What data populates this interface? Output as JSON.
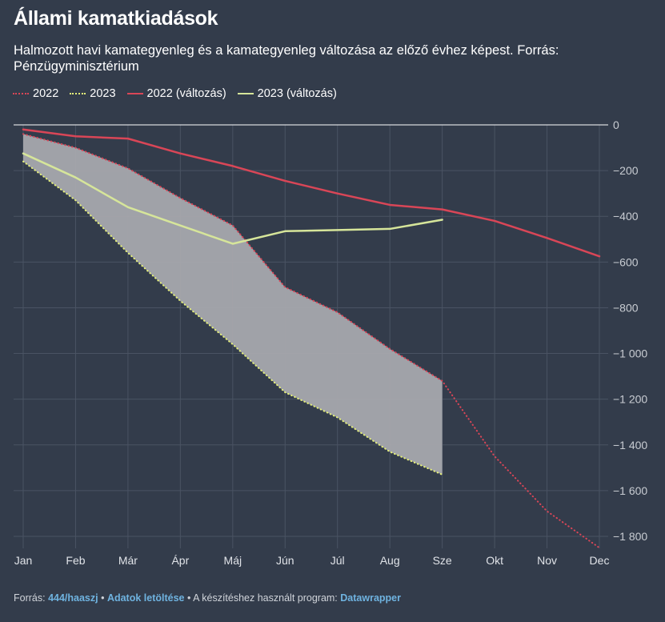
{
  "title": "Állami kamatkiadások",
  "subtitle": "Halmozott havi kamategyenleg és a kamategyenleg változása az előző évhez képest. Forrás: Pénzügyminisztérium",
  "legend": [
    {
      "label": "2022",
      "style": "dotted",
      "color": "#d94657"
    },
    {
      "label": "2023",
      "style": "dotted",
      "color": "#e5f07a"
    },
    {
      "label": "2022 (változás)",
      "style": "solid",
      "color": "#d94657"
    },
    {
      "label": "2023 (változás)",
      "style": "solid",
      "color": "#d6e59a"
    }
  ],
  "footer": {
    "prefix": "Forrás: ",
    "source_link": "444/haaszj",
    "sep1": " • ",
    "download_link": "Adatok letöltése",
    "sep2": " • A készítéshez használt program: ",
    "tool_link": "Datawrapper"
  },
  "colors": {
    "background": "#333c4b",
    "red": "#d94657",
    "yellow_dotted": "#e5f07a",
    "yellow_solid": "#d6e59a",
    "band_fill": "#a6a8ad",
    "grid": "#4a5363"
  },
  "chart_data": {
    "type": "line",
    "categories": [
      "Jan",
      "Feb",
      "Már",
      "Ápr",
      "Máj",
      "Jún",
      "Júl",
      "Aug",
      "Sze",
      "Okt",
      "Nov",
      "Dec"
    ],
    "ylim": [
      -1880,
      0
    ],
    "yticks": [
      0,
      -200,
      -400,
      -600,
      -800,
      -1000,
      -1200,
      -1400,
      -1600,
      -1800
    ],
    "ytick_labels": [
      "0",
      "−200",
      "−400",
      "−600",
      "−800",
      "−1 000",
      "−1 200",
      "−1 400",
      "−1 600",
      "−1 800"
    ],
    "grid": true,
    "legend_position": "top-left",
    "series": [
      {
        "name": "2022",
        "style": "dotted",
        "color": "#d94657",
        "values": [
          -40,
          -100,
          -190,
          -320,
          -440,
          -710,
          -820,
          -980,
          -1120,
          -1450,
          -1690,
          -1850
        ]
      },
      {
        "name": "2023",
        "style": "dotted",
        "color": "#e5f07a",
        "values": [
          -160,
          -330,
          -560,
          -770,
          -960,
          -1170,
          -1280,
          -1430,
          -1530,
          null,
          null,
          null
        ]
      },
      {
        "name": "2022 (változás)",
        "style": "solid",
        "color": "#d94657",
        "values": [
          -20,
          -50,
          -60,
          -125,
          -180,
          -245,
          -300,
          -350,
          -370,
          -420,
          -495,
          -575
        ]
      },
      {
        "name": "2023 (változás)",
        "style": "solid",
        "color": "#d6e59a",
        "values": [
          -125,
          -230,
          -360,
          -440,
          -520,
          -465,
          -460,
          -455,
          -415,
          null,
          null,
          null
        ]
      }
    ],
    "band_between": [
      "2022",
      "2023"
    ]
  }
}
